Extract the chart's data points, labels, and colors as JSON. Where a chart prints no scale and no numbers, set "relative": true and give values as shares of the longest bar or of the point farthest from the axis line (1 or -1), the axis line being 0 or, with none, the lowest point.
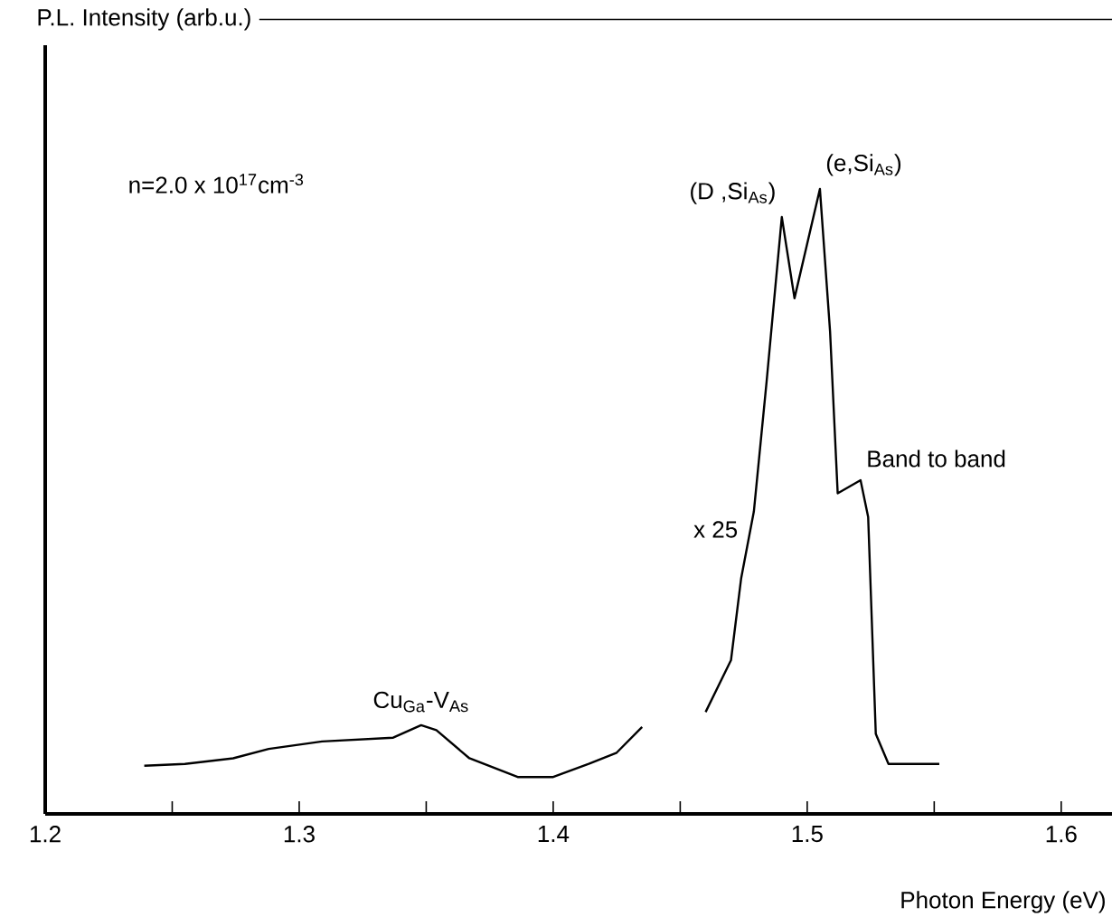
{
  "chart_data": {
    "type": "line",
    "relative": true,
    "xlabel": "Photon Energy (eV)",
    "xlim": [
      1.2,
      1.62
    ],
    "xticks": [
      1.2,
      {
        "value": 1.25,
        "label": null
      },
      1.3,
      {
        "value": 1.35,
        "label": null
      },
      1.4,
      {
        "value": 1.45,
        "label": null
      },
      1.5,
      {
        "value": 1.55,
        "label": null
      },
      1.6
    ],
    "series": [
      {
        "color": "#000000",
        "x": [
          1.239,
          1.255,
          1.274,
          1.288,
          1.309,
          1.337,
          1.348,
          1.354,
          1.367,
          1.386,
          1.4,
          1.414,
          1.425,
          1.435
        ],
        "values": [
          0.077,
          0.08,
          0.089,
          0.104,
          0.116,
          0.122,
          0.142,
          0.134,
          0.089,
          0.059,
          0.059,
          0.08,
          0.098,
          0.139
        ]
      },
      {
        "color": "#000000",
        "x": [
          1.46,
          1.47,
          1.474,
          1.479,
          1.484,
          1.49,
          1.495,
          1.505,
          1.509,
          1.512,
          1.521,
          1.524,
          1.527,
          1.532,
          1.552
        ],
        "values": [
          0.163,
          0.246,
          0.377,
          0.484,
          0.691,
          0.955,
          0.825,
          1.0,
          0.772,
          0.513,
          0.534,
          0.475,
          0.128,
          0.08,
          0.08
        ]
      }
    ],
    "annotations": [
      "P.L. Intensity (arb.u.)",
      "n=2.0 x 10$^{17}$cm$^{-3}$",
      "x 25",
      {
        "text": "Cu$_{Ga}$-V$_{As}$",
        "x": 1.348,
        "y": 0.142
      },
      {
        "text": "(D ,Si$_{As}$)",
        "x": 1.49,
        "y": 0.955
      },
      {
        "text": "(e,Si$_{As}$)",
        "x": 1.505,
        "y": 1.0
      },
      {
        "text": "Band to band",
        "x": 1.521,
        "y": 0.534
      }
    ]
  }
}
